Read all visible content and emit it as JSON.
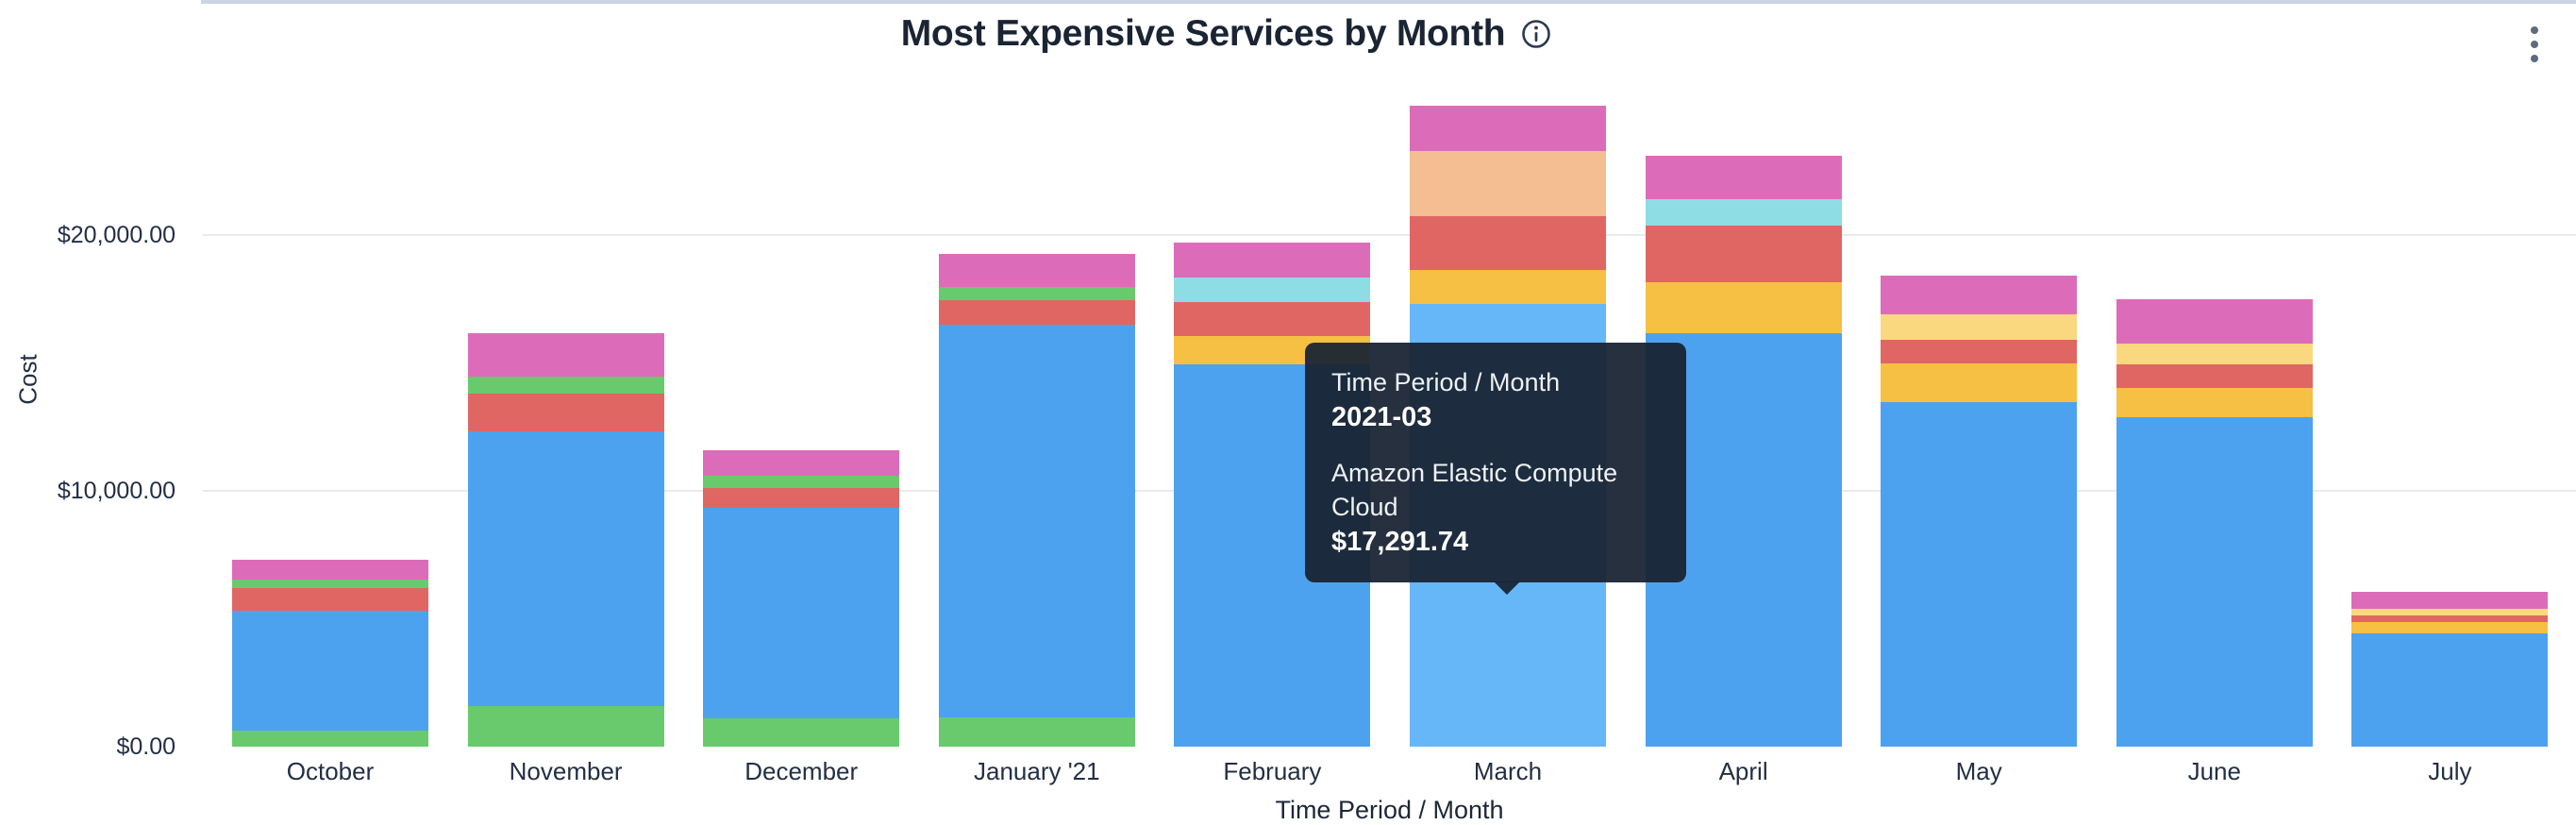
{
  "header": {
    "title": "Most Expensive Services by Month",
    "info_icon": "info-circle-icon",
    "menu_icon": "kebab-vertical-icon"
  },
  "y_axis": {
    "title": "Cost"
  },
  "x_axis": {
    "title": "Time Period / Month"
  },
  "tooltip": {
    "label1": "Time Period / Month",
    "value1": "2021-03",
    "label2": "Amazon Elastic Compute Cloud",
    "value2": "$17,291.74"
  },
  "chart_data": {
    "type": "bar",
    "stacked": true,
    "title": "Most Expensive Services by Month",
    "xlabel": "Time Period / Month",
    "ylabel": "Cost",
    "ylim": [
      0,
      26000
    ],
    "yticks": [
      {
        "value": 0,
        "label": "$0.00"
      },
      {
        "value": 10000,
        "label": "$10,000.00"
      },
      {
        "value": 20000,
        "label": "$20,000.00"
      }
    ],
    "legend": "none",
    "grid": "horizontal",
    "highlighted_category": "March",
    "highlighted_series": "Amazon Elastic Compute Cloud",
    "highlighted_value": 17291.74,
    "colors": {
      "blue": "#4da2ef",
      "blue_light": "#66b7f8",
      "green": "#68ca6d",
      "red": "#e06663",
      "pink": "#dc6cba",
      "teal": "#8edce4",
      "peach": "#f4bd92",
      "amber": "#f6c044",
      "pale_yellow": "#f9d87f"
    },
    "categories": [
      "October",
      "November",
      "December",
      "January '21",
      "February",
      "March",
      "April",
      "May",
      "June",
      "July"
    ],
    "bars": [
      {
        "month": "October",
        "total": 7320,
        "segments": [
          {
            "color": "green",
            "value": 630
          },
          {
            "color": "blue",
            "value": 4690
          },
          {
            "color": "red",
            "value": 890
          },
          {
            "color": "green",
            "value": 330
          },
          {
            "color": "pink",
            "value": 780
          }
        ]
      },
      {
        "month": "November",
        "total": 16175,
        "segments": [
          {
            "color": "green",
            "value": 1590
          },
          {
            "color": "blue",
            "value": 10740
          },
          {
            "color": "red",
            "value": 1480
          },
          {
            "color": "green",
            "value": 665
          },
          {
            "color": "pink",
            "value": 1700
          }
        ]
      },
      {
        "month": "December",
        "total": 11590,
        "segments": [
          {
            "color": "green",
            "value": 1110
          },
          {
            "color": "blue",
            "value": 8230
          },
          {
            "color": "red",
            "value": 775
          },
          {
            "color": "green",
            "value": 480
          },
          {
            "color": "pink",
            "value": 995
          }
        ]
      },
      {
        "month": "January '21",
        "total": 19265,
        "segments": [
          {
            "color": "green",
            "value": 1145
          },
          {
            "color": "blue",
            "value": 15355
          },
          {
            "color": "red",
            "value": 960
          },
          {
            "color": "green",
            "value": 515
          },
          {
            "color": "pink",
            "value": 1290
          }
        ]
      },
      {
        "month": "February",
        "total": 19710,
        "segments": [
          {
            "color": "blue",
            "value": 14950
          },
          {
            "color": "amber",
            "value": 1105
          },
          {
            "color": "red",
            "value": 1330
          },
          {
            "color": "teal",
            "value": 960
          },
          {
            "color": "pink",
            "value": 1365
          }
        ]
      },
      {
        "month": "March",
        "total": 25041.74,
        "segments": [
          {
            "color": "blue_light",
            "value": 17291.74
          },
          {
            "color": "amber",
            "value": 1330
          },
          {
            "color": "red",
            "value": 2105
          },
          {
            "color": "peach",
            "value": 2545
          },
          {
            "color": "pink",
            "value": 1770
          }
        ]
      },
      {
        "month": "April",
        "total": 23115,
        "segments": [
          {
            "color": "blue",
            "value": 16170
          },
          {
            "color": "amber",
            "value": 1995
          },
          {
            "color": "red",
            "value": 2215
          },
          {
            "color": "teal",
            "value": 1035
          },
          {
            "color": "pink",
            "value": 1700
          }
        ]
      },
      {
        "month": "May",
        "total": 18430,
        "segments": [
          {
            "color": "blue",
            "value": 13480
          },
          {
            "color": "amber",
            "value": 1515
          },
          {
            "color": "red",
            "value": 925
          },
          {
            "color": "pale_yellow",
            "value": 995
          },
          {
            "color": "pink",
            "value": 1515
          }
        ]
      },
      {
        "month": "June",
        "total": 17505,
        "segments": [
          {
            "color": "blue",
            "value": 12890
          },
          {
            "color": "amber",
            "value": 1145
          },
          {
            "color": "red",
            "value": 925
          },
          {
            "color": "pale_yellow",
            "value": 810
          },
          {
            "color": "pink",
            "value": 1735
          }
        ]
      },
      {
        "month": "July",
        "total": 6060,
        "segments": [
          {
            "color": "blue",
            "value": 4430
          },
          {
            "color": "amber",
            "value": 445
          },
          {
            "color": "red",
            "value": 260
          },
          {
            "color": "pale_yellow",
            "value": 260
          },
          {
            "color": "pink",
            "value": 665
          }
        ]
      }
    ]
  }
}
